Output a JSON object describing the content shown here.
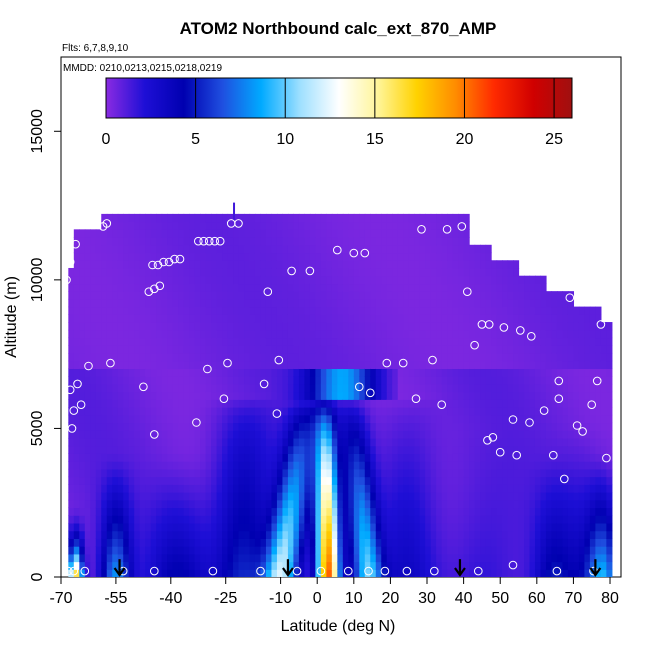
{
  "chart_data": {
    "type": "heatmap",
    "title": "ATOM2 Northbound calc_ext_870_AMP",
    "subtitle_flights": "Flts: 6,7,8,9,10",
    "subtitle_dates": "MMDD: 0210,0213,0215,0218,0219",
    "xlabel": "Latitude (deg N)",
    "ylabel": "Altitude (m)",
    "xlim": [
      -70,
      83
    ],
    "ylim": [
      0,
      17500
    ],
    "x_ticks": [
      -70,
      -55,
      -40,
      -25,
      -10,
      0,
      10,
      20,
      30,
      40,
      50,
      60,
      70,
      80
    ],
    "x_tick_labels": [
      "-70",
      "-55",
      "-40",
      "-25",
      "-10",
      "0",
      "10",
      "20",
      "30",
      "40",
      "50",
      "60",
      "70",
      "80"
    ],
    "y_ticks": [
      0,
      5000,
      10000,
      15000
    ],
    "y_tick_labels": [
      "0",
      "5000",
      "10000",
      "15000"
    ],
    "colorbar": {
      "range": [
        0,
        26
      ],
      "ticks": [
        0,
        5,
        10,
        15,
        20,
        25
      ],
      "tick_labels": [
        "0",
        "5",
        "10",
        "15",
        "20",
        "25"
      ],
      "colors": [
        "#8a2be2",
        "#1e0fd6",
        "#0000b0",
        "#1f4fe0",
        "#00aaff",
        "#9fe0ff",
        "#ffffff",
        "#fff59a",
        "#ffd200",
        "#ff8c00",
        "#ff2a00",
        "#d00000",
        "#a01010"
      ]
    },
    "arrow_latitudes": [
      -54,
      -8,
      39,
      76
    ],
    "sample_points": [
      [
        -68.5,
        10000
      ],
      [
        -67.5,
        10600
      ],
      [
        -66,
        11200
      ],
      [
        -67.5,
        6300
      ],
      [
        -66.5,
        5600
      ],
      [
        -65.5,
        6500
      ],
      [
        -64.5,
        5800
      ],
      [
        -62.5,
        7100
      ],
      [
        -67,
        5000
      ],
      [
        -56.5,
        7200
      ],
      [
        -58.5,
        11800
      ],
      [
        -57.5,
        11900
      ],
      [
        -47.5,
        6400
      ],
      [
        -44.5,
        4800
      ],
      [
        -46,
        9600
      ],
      [
        -44.5,
        9700
      ],
      [
        -43,
        9800
      ],
      [
        -45,
        10500
      ],
      [
        -43.5,
        10500
      ],
      [
        -42,
        10600
      ],
      [
        -40.5,
        10600
      ],
      [
        -39,
        10700
      ],
      [
        -37.5,
        10700
      ],
      [
        -32.5,
        11300
      ],
      [
        -31,
        11300
      ],
      [
        -29.5,
        11300
      ],
      [
        -28,
        11300
      ],
      [
        -26.5,
        11300
      ],
      [
        -30,
        7000
      ],
      [
        -33,
        5200
      ],
      [
        -24.5,
        7200
      ],
      [
        -25.5,
        6000
      ],
      [
        -23.5,
        11900
      ],
      [
        -21.5,
        11900
      ],
      [
        -14.5,
        6500
      ],
      [
        -13.5,
        9600
      ],
      [
        -10.5,
        7300
      ],
      [
        -11,
        5500
      ],
      [
        -7,
        10300
      ],
      [
        -2,
        10300
      ],
      [
        5.5,
        11000
      ],
      [
        10,
        10900
      ],
      [
        13,
        10900
      ],
      [
        11.5,
        6400
      ],
      [
        14.5,
        6200
      ],
      [
        19,
        7200
      ],
      [
        23.5,
        7200
      ],
      [
        27,
        6000
      ],
      [
        28.5,
        11700
      ],
      [
        31.5,
        7300
      ],
      [
        34,
        5800
      ],
      [
        35.5,
        11700
      ],
      [
        39.5,
        11800
      ],
      [
        41,
        9600
      ],
      [
        43,
        7800
      ],
      [
        45,
        8500
      ],
      [
        47,
        8500
      ],
      [
        46.5,
        4600
      ],
      [
        48,
        4700
      ],
      [
        51,
        8400
      ],
      [
        50,
        4200
      ],
      [
        53.5,
        5300
      ],
      [
        55.5,
        8300
      ],
      [
        54.5,
        4100
      ],
      [
        58.5,
        8100
      ],
      [
        58,
        5200
      ],
      [
        62,
        5600
      ],
      [
        64.5,
        4100
      ],
      [
        66,
        6600
      ],
      [
        66,
        6000
      ],
      [
        67.5,
        3300
      ],
      [
        69,
        9400
      ],
      [
        73,
        9400
      ],
      [
        71,
        5100
      ],
      [
        72.5,
        4900
      ],
      [
        75,
        5800
      ],
      [
        76.5,
        6600
      ],
      [
        77.5,
        8500
      ],
      [
        79,
        4000
      ],
      [
        -68,
        200
      ],
      [
        -66.5,
        200
      ],
      [
        -63.5,
        200
      ],
      [
        -53,
        200
      ],
      [
        -44.5,
        200
      ],
      [
        -28.5,
        200
      ],
      [
        -15.5,
        200
      ],
      [
        -5.5,
        200
      ],
      [
        1,
        200
      ],
      [
        8.5,
        200
      ],
      [
        14,
        200
      ],
      [
        18.5,
        200
      ],
      [
        24.5,
        200
      ],
      [
        32,
        200
      ],
      [
        44,
        200
      ],
      [
        53.5,
        400
      ],
      [
        65.5,
        200
      ],
      [
        75.5,
        200
      ]
    ]
  }
}
